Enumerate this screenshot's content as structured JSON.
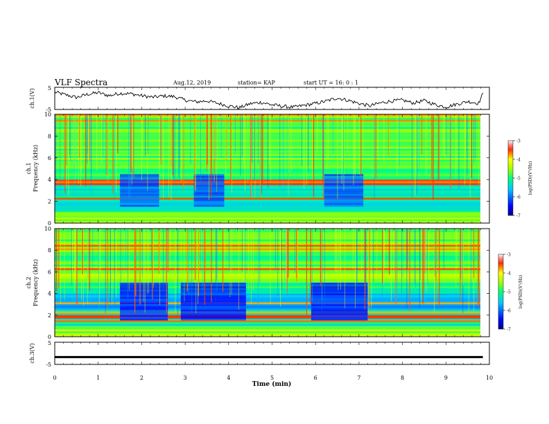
{
  "header": {
    "title": "VLF Spectra",
    "date": "Aug.12, 2019",
    "station": "station= KAP",
    "start": "start  UT =   16: 0  : 1"
  },
  "chart_data": [
    {
      "type": "line",
      "panel": "ch1-voltage",
      "ylabel": "ch.1(V)",
      "ylim": [
        -5,
        5
      ],
      "yticks": [
        -5,
        5
      ],
      "xlim": [
        0,
        10
      ],
      "series": [
        {
          "x": [
            0,
            0.25,
            0.5,
            0.75,
            1,
            1.25,
            1.5,
            1.75,
            2,
            2.25,
            2.5,
            2.75,
            3,
            3.25,
            3.5,
            3.75,
            4,
            4.25,
            4.5,
            4.75,
            5,
            5.25,
            5.5,
            5.75,
            6,
            6.25,
            6.5,
            6.75,
            7,
            7.25,
            7.5,
            7.75,
            8,
            8.25,
            8.5,
            8.75,
            9,
            9.25,
            9.5,
            9.75,
            9.85
          ],
          "values": [
            2.8,
            1.6,
            0.4,
            1.8,
            2.6,
            1.2,
            2.3,
            2.1,
            1.2,
            0.5,
            1.1,
            0.8,
            -0.8,
            -1.6,
            -1.1,
            -2.2,
            -3.4,
            -4.2,
            -2.4,
            -1.8,
            -2.9,
            -3.6,
            -4.0,
            -3.1,
            -2.3,
            -1.2,
            0.2,
            -0.9,
            -2.3,
            -3.4,
            -2.0,
            -1.2,
            -0.8,
            -2.1,
            -1.0,
            -2.8,
            -3.9,
            -2.6,
            -1.4,
            -2.2,
            2.0
          ]
        }
      ]
    },
    {
      "type": "heatmap",
      "panel": "ch1-spectrogram",
      "ylabel": "ch.1\nFrequency (kHz)",
      "ylim": [
        0,
        10
      ],
      "yticks": [
        0,
        2,
        4,
        6,
        8,
        10
      ],
      "xlim": [
        0,
        10
      ],
      "data_xlim": [
        0,
        9.85
      ],
      "colorbar": {
        "label": "log(PSD)(V²/Hz)",
        "range": [
          -7,
          -3
        ],
        "ticks": [
          -7,
          -6,
          -5,
          -4,
          -3
        ]
      },
      "quiet_intervals_min": [
        [
          1.5,
          2.4
        ],
        [
          3.2,
          3.9
        ],
        [
          6.2,
          7.1
        ]
      ]
    },
    {
      "type": "heatmap",
      "panel": "ch2-spectrogram",
      "ylabel": "ch.2\nFrequency (kHz)",
      "ylim": [
        0,
        10
      ],
      "yticks": [
        0,
        2,
        4,
        6,
        8,
        10
      ],
      "xlim": [
        0,
        10
      ],
      "data_xlim": [
        0,
        9.85
      ],
      "colorbar": {
        "label": "log(PSD)(V²/Hz)",
        "range": [
          -7,
          -3
        ],
        "ticks": [
          -7,
          -6,
          -5,
          -4,
          -3
        ]
      },
      "quiet_intervals_min": [
        [
          1.5,
          2.6
        ],
        [
          2.9,
          4.4
        ],
        [
          5.9,
          7.2
        ]
      ]
    },
    {
      "type": "line",
      "panel": "ch3-voltage",
      "ylabel": "ch.3(V)",
      "ylim": [
        -5,
        5
      ],
      "yticks": [
        -5,
        5
      ],
      "xlim": [
        0,
        10
      ],
      "series": [
        {
          "x": [
            0,
            9.85
          ],
          "values": [
            -1.7,
            -1.7
          ]
        }
      ]
    }
  ],
  "xaxis": {
    "label": "Time (min)",
    "ticks": [
      "0",
      "1",
      "2",
      "3",
      "4",
      "5",
      "6",
      "7",
      "8",
      "9",
      "10"
    ]
  },
  "colors": {
    "frame": "#000000",
    "background": "#ffffff"
  }
}
